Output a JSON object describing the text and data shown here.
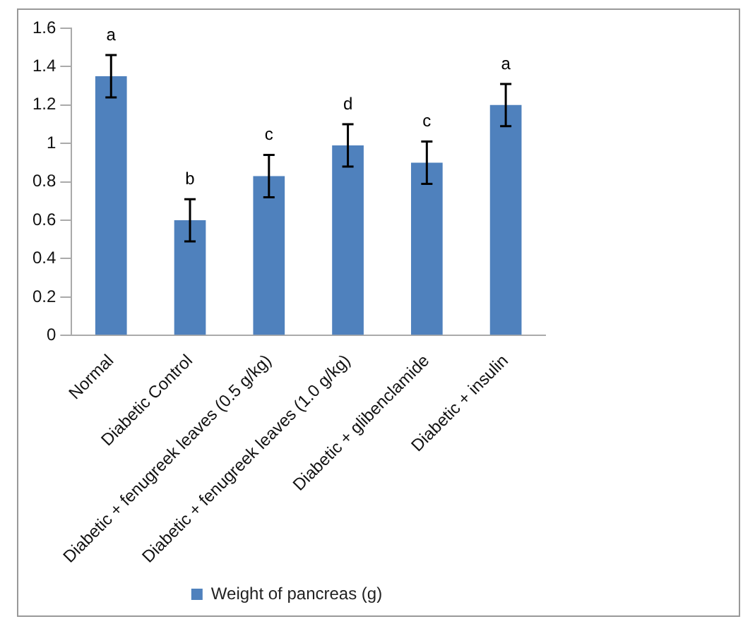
{
  "chart_data": {
    "type": "bar",
    "categories": [
      "Normal",
      "Diabetic Control",
      "Diabetic + fenugreek leaves (0.5 g/kg)",
      "Diabetic + fenugreek leaves (1.0 g/kg)",
      "Diabetic + glibenclamide",
      "Diabetic + insulin"
    ],
    "series": [
      {
        "name": "Weight of pancreas (g)",
        "color": "#4f81bd",
        "values": [
          1.35,
          0.6,
          0.83,
          0.99,
          0.9,
          1.2
        ],
        "errors": [
          0.11,
          0.11,
          0.11,
          0.11,
          0.11,
          0.11
        ]
      }
    ],
    "ylim": [
      0,
      1.6
    ],
    "yticks": [
      0,
      0.2,
      0.4,
      0.6,
      0.8,
      1,
      1.2,
      1.4,
      1.6
    ],
    "grid": false,
    "legend": "bottom",
    "annotations": [
      "a",
      "b",
      "c",
      "d",
      "c",
      "a"
    ]
  }
}
